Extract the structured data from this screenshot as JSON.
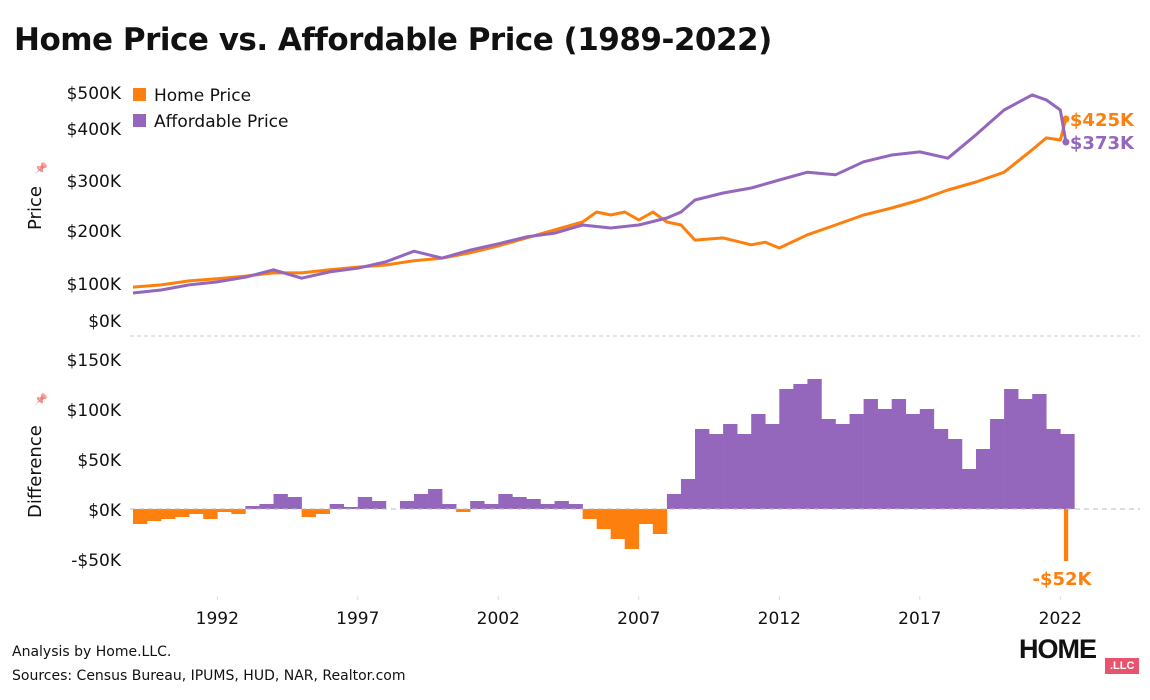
{
  "chart_data": [
    {
      "type": "line",
      "title": "Home Price vs. Affordable Price (1989-2022)",
      "ylabel": "Price",
      "y_ticks": [
        {
          "v": 0,
          "label": "$0K"
        },
        {
          "v": 100,
          "label": "$100K"
        },
        {
          "v": 200,
          "label": "$200K"
        },
        {
          "v": 300,
          "label": "$300K"
        },
        {
          "v": 400,
          "label": "$400K"
        },
        {
          "v": 500,
          "label": "$500K"
        }
      ],
      "y_unit": "thousand USD",
      "legend": "top-left",
      "series": [
        {
          "name": "Home Price",
          "color": "#fd7f0e",
          "end_label": "$425K",
          "x": [
            1989,
            1990,
            1991,
            1992,
            1993,
            1994,
            1995,
            1996,
            1997,
            1998,
            1999,
            2000,
            2001,
            2002,
            2003,
            2004,
            2005,
            2005.5,
            2006,
            2006.5,
            2007,
            2007.5,
            2008,
            2008.5,
            2009,
            2010,
            2011,
            2011.5,
            2012,
            2013,
            2014,
            2015,
            2016,
            2017,
            2018,
            2019,
            2020,
            2021,
            2021.5,
            2022,
            2022.2
          ],
          "y": [
            89,
            95,
            104,
            108,
            113,
            119,
            119,
            125,
            130,
            134,
            142,
            147,
            157,
            170,
            185,
            200,
            216,
            236,
            230,
            236,
            220,
            236,
            216,
            210,
            181,
            185,
            172,
            177,
            166,
            191,
            210,
            230,
            244,
            260,
            280,
            296,
            315,
            358,
            381,
            377,
            425
          ]
        },
        {
          "name": "Affordable Price",
          "color": "#9467bd",
          "end_label": "$373K",
          "x": [
            1989,
            1990,
            1991,
            1992,
            1993,
            1994,
            1995,
            1996,
            1997,
            1998,
            1999,
            2000,
            2001,
            2002,
            2003,
            2004,
            2005,
            2006,
            2007,
            2008,
            2008.5,
            2009,
            2010,
            2011,
            2012,
            2013,
            2014,
            2015,
            2016,
            2017,
            2018,
            2019,
            2020,
            2021,
            2021.5,
            2022,
            2022.2
          ],
          "y": [
            73,
            81,
            95,
            102,
            111,
            125,
            109,
            121,
            128,
            140,
            160,
            147,
            162,
            174,
            187,
            194,
            210,
            204,
            210,
            224,
            236,
            260,
            274,
            284,
            300,
            315,
            310,
            335,
            348,
            354,
            342,
            387,
            450,
            492,
            478,
            450,
            373
          ]
        }
      ]
    },
    {
      "type": "bar",
      "ylabel": "Difference",
      "y_ticks": [
        {
          "v": -50,
          "label": "-$50K"
        },
        {
          "v": 0,
          "label": "$0K"
        },
        {
          "v": 50,
          "label": "$50K"
        },
        {
          "v": 100,
          "label": "$100K"
        },
        {
          "v": 150,
          "label": "$150K"
        }
      ],
      "positive_color": "#9467bd",
      "negative_color": "#fd7f0e",
      "end_label": "-$52K",
      "x": [
        1989,
        1989.5,
        1990,
        1990.5,
        1991,
        1991.5,
        1992,
        1992.5,
        1993,
        1993.5,
        1994,
        1994.5,
        1995,
        1995.5,
        1996,
        1996.5,
        1997,
        1997.5,
        1998,
        1998.5,
        1999,
        1999.5,
        2000,
        2000.5,
        2001,
        2001.5,
        2002,
        2002.5,
        2003,
        2003.5,
        2004,
        2004.5,
        2005,
        2005.5,
        2006,
        2006.5,
        2007,
        2007.5,
        2008,
        2008.5,
        2009,
        2009.5,
        2010,
        2010.5,
        2011,
        2011.5,
        2012,
        2012.5,
        2013,
        2013.5,
        2014,
        2014.5,
        2015,
        2015.5,
        2016,
        2016.5,
        2017,
        2017.5,
        2018,
        2018.5,
        2019,
        2019.5,
        2020,
        2020.5,
        2021,
        2021.5,
        2022,
        2022.2
      ],
      "values": [
        -15,
        -12,
        -10,
        -8,
        -5,
        -10,
        -3,
        -5,
        3,
        5,
        15,
        12,
        -8,
        -5,
        5,
        2,
        12,
        8,
        0,
        8,
        15,
        20,
        5,
        -3,
        8,
        5,
        15,
        12,
        10,
        5,
        8,
        5,
        -10,
        -20,
        -30,
        -40,
        -15,
        -25,
        15,
        30,
        80,
        75,
        85,
        75,
        95,
        85,
        120,
        125,
        130,
        90,
        85,
        95,
        110,
        100,
        110,
        95,
        100,
        80,
        70,
        40,
        60,
        90,
        120,
        110,
        115,
        80,
        75,
        -52
      ]
    }
  ],
  "x_ticks": [
    1992,
    1997,
    2002,
    2007,
    2012,
    2017,
    2022
  ],
  "title": "Home Price vs. Affordable Price (1989-2022)",
  "footer": {
    "analysis": "Analysis by Home.LLC.",
    "sources": "Sources: Census Bureau, IPUMS, HUD, NAR, Realtor.com"
  },
  "logo": {
    "main": "HOME",
    "badge": ".LLC"
  }
}
